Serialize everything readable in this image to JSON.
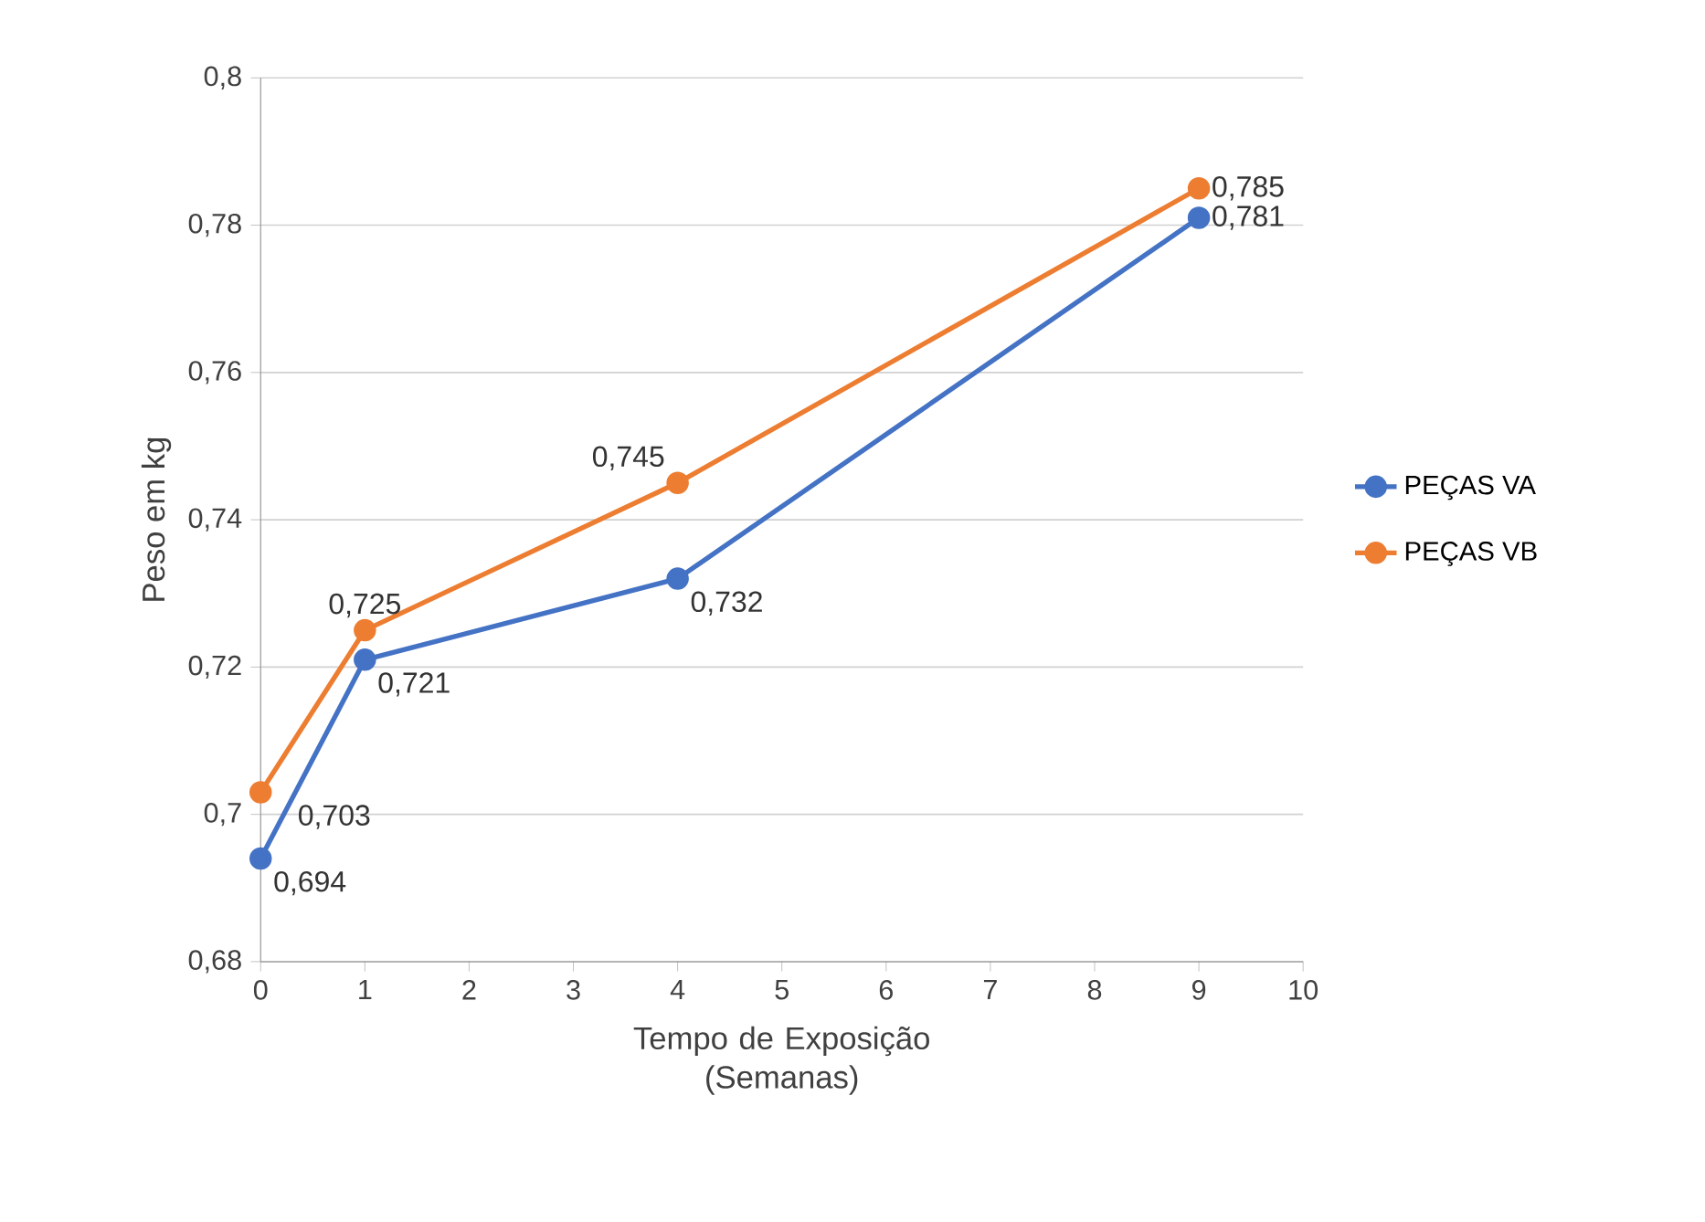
{
  "chart_data": {
    "type": "line",
    "xlabel": "Tempo de Exposição (Semanas)",
    "ylabel": "Peso em kg",
    "x": [
      0,
      1,
      4,
      9
    ],
    "series": [
      {
        "name": "PEÇAS VA",
        "color": "#4472c4",
        "values": [
          0.694,
          0.721,
          0.732,
          0.781
        ],
        "value_labels": [
          "0,694",
          "0,721",
          "0,732",
          "0,781"
        ]
      },
      {
        "name": "PEÇAS VB",
        "color": "#ed7d31",
        "values": [
          0.703,
          0.725,
          0.745,
          0.785
        ],
        "value_labels": [
          "0,703",
          "0,725",
          "0,745",
          "0,785"
        ]
      }
    ],
    "xlim": [
      0,
      10
    ],
    "xticks": [
      0,
      1,
      2,
      3,
      4,
      5,
      6,
      7,
      8,
      9,
      10
    ],
    "ylim": [
      0.68,
      0.8
    ],
    "yticks": [
      {
        "value": 0.68,
        "label": "0,68"
      },
      {
        "value": 0.7,
        "label": "0,7"
      },
      {
        "value": 0.72,
        "label": "0,72"
      },
      {
        "value": 0.74,
        "label": "0,74"
      },
      {
        "value": 0.76,
        "label": "0,76"
      },
      {
        "value": 0.78,
        "label": "0,78"
      },
      {
        "value": 0.8,
        "label": "0,8"
      }
    ],
    "grid": "y",
    "legend": "right",
    "marker": "circle"
  }
}
